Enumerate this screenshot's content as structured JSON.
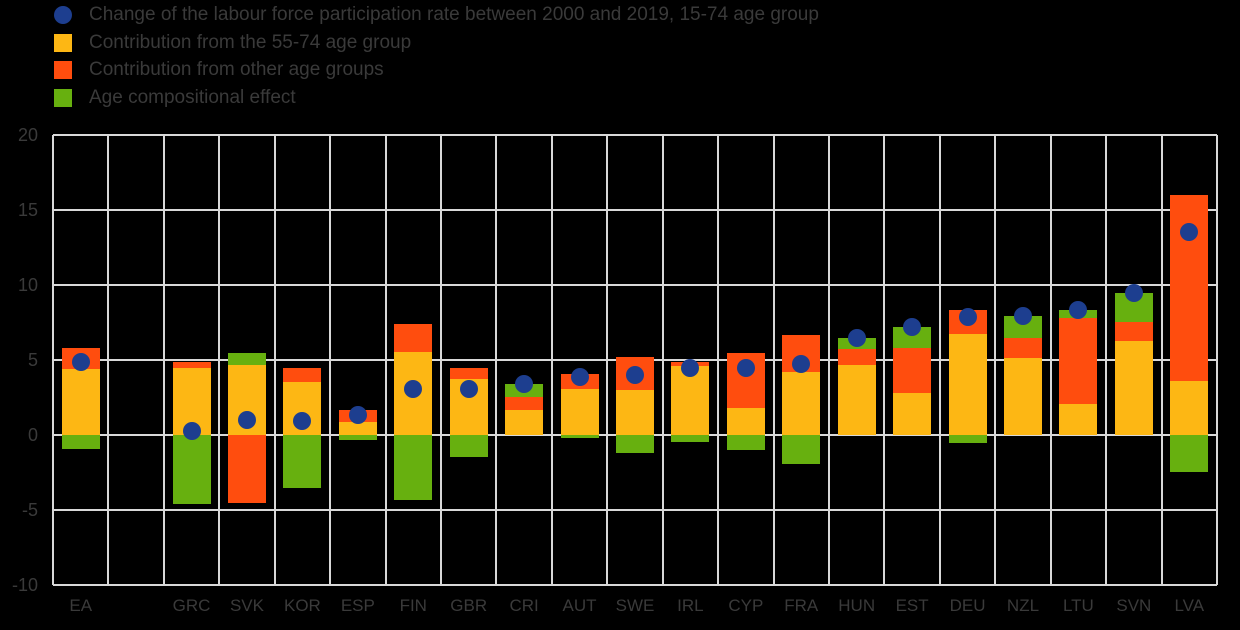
{
  "colors": {
    "background": "#000000",
    "gridline": "#d9d9d9",
    "text": "#3a3a3a",
    "dot_blue": "#1d3e8f",
    "bar_yellow": "#fdb714",
    "bar_orange": "#ff4d0e",
    "bar_green": "#67b00f"
  },
  "chart_data": {
    "type": "bar",
    "stacked": true,
    "title": "",
    "xlabel": "",
    "ylabel": "",
    "ylim": [
      -10,
      20
    ],
    "y_ticks": [
      20,
      15,
      10,
      5,
      0,
      -5,
      -10
    ],
    "grid": true,
    "legend_position": "top-left",
    "categories": [
      "EA",
      "",
      "GRC",
      "SVK",
      "KOR",
      "ESP",
      "FIN",
      "GBR",
      "CRI",
      "AUT",
      "SWE",
      "IRL",
      "CYP",
      "FRA",
      "HUN",
      "EST",
      "DEU",
      "NZL",
      "LTU",
      "SVN",
      "LVA"
    ],
    "series": [
      {
        "name": "Contribution from the 55-74 age group",
        "color": "#fdb714",
        "values": [
          4.4,
          null,
          4.5,
          4.7,
          3.55,
          0.9,
          5.55,
          3.75,
          1.65,
          3.1,
          3.0,
          4.6,
          1.8,
          4.2,
          4.65,
          2.8,
          6.75,
          5.15,
          2.1,
          6.3,
          3.6
        ]
      },
      {
        "name": "Contribution from other age groups",
        "color": "#ff4d0e",
        "values": [
          1.4,
          null,
          0.35,
          -4.5,
          0.9,
          0.8,
          1.85,
          0.75,
          0.9,
          1.0,
          2.2,
          0.3,
          3.65,
          2.45,
          1.1,
          3.0,
          1.6,
          1.35,
          5.7,
          1.25,
          12.4
        ]
      },
      {
        "name": "Age compositional effect",
        "color": "#67b00f",
        "values": [
          -0.9,
          null,
          -4.6,
          0.8,
          -3.5,
          -0.35,
          -4.3,
          -1.45,
          0.85,
          -0.2,
          -1.2,
          -0.45,
          -1.0,
          -1.9,
          0.75,
          1.4,
          -0.5,
          1.45,
          0.55,
          1.9,
          -2.45
        ]
      }
    ],
    "overlay": {
      "type": "scatter",
      "name": "Change of the labour force participation rate between 2000 and 2019, 15-74 age group",
      "color": "#1d3e8f",
      "values": [
        4.85,
        null,
        0.25,
        1.0,
        0.95,
        1.35,
        3.1,
        3.05,
        3.4,
        3.9,
        4.0,
        4.45,
        4.45,
        4.75,
        6.5,
        7.2,
        7.85,
        7.95,
        8.35,
        9.45,
        13.55
      ]
    }
  }
}
